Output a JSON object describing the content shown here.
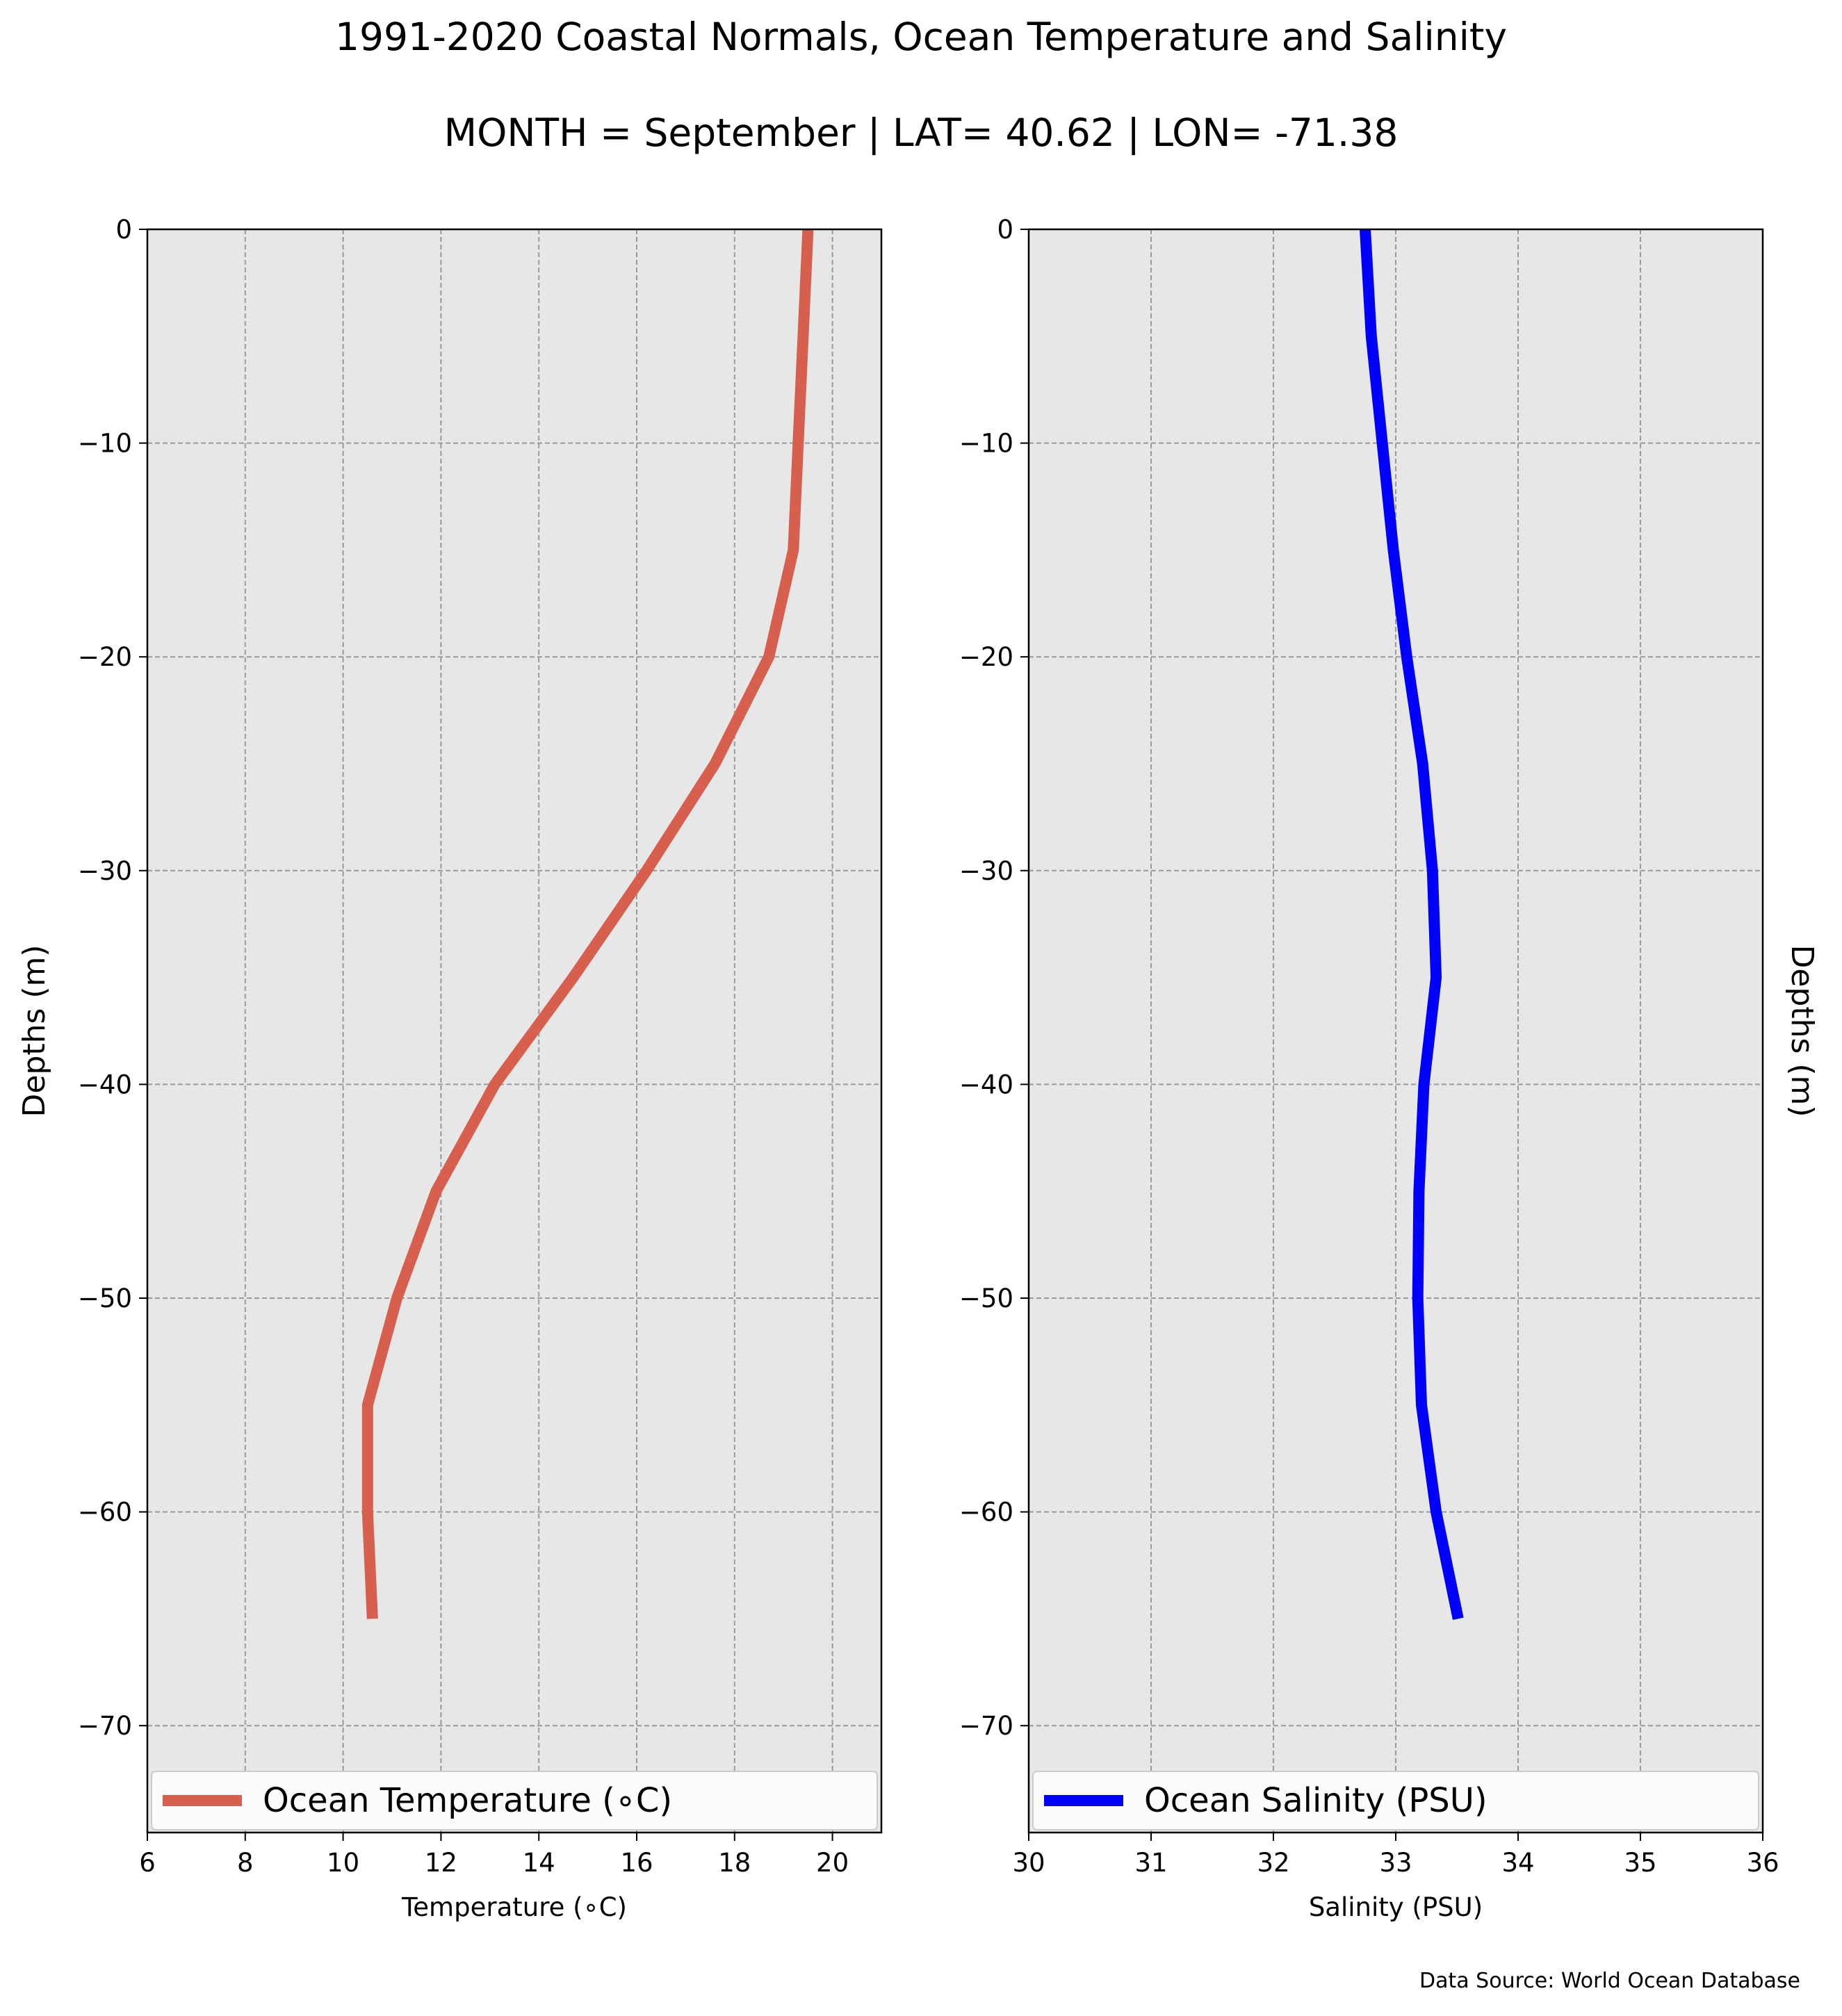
{
  "title": "1991-2020 Coastal Normals, Ocean Temperature and Salinity",
  "subtitle": "MONTH = September | LAT= 40.62 | LON= -71.38",
  "source": "Data Source: World Ocean Database",
  "chart_data": [
    {
      "type": "line",
      "xlabel": "Temperature (∘C)",
      "ylabel": "Depths (m)",
      "xlim": [
        6,
        21
      ],
      "ylim": [
        -75,
        0
      ],
      "xticks": [
        6,
        8,
        10,
        12,
        14,
        16,
        18,
        20
      ],
      "xtick_labels": [
        "6",
        "8",
        "10",
        "12",
        "14",
        "16",
        "18",
        "20"
      ],
      "yticks": [
        0,
        -10,
        -20,
        -30,
        -40,
        -50,
        -60,
        -70
      ],
      "ytick_labels": [
        "0",
        "−10",
        "−20",
        "−30",
        "−40",
        "−50",
        "−60",
        "−70"
      ],
      "grid": true,
      "legend": "bottom",
      "series": [
        {
          "name": "Ocean Temperature (∘C)",
          "color": "#d65f4e",
          "x": [
            19.5,
            19.4,
            19.3,
            19.2,
            18.7,
            17.6,
            16.2,
            14.7,
            13.1,
            11.9,
            11.1,
            10.5,
            10.5,
            10.6
          ],
          "y": [
            0,
            -5,
            -10,
            -15,
            -20,
            -25,
            -30,
            -35,
            -40,
            -45,
            -50,
            -55,
            -60,
            -65
          ]
        }
      ]
    },
    {
      "type": "line",
      "xlabel": "Salinity (PSU)",
      "ylabel": "Depths (m)",
      "xlim": [
        30,
        36
      ],
      "ylim": [
        -75,
        0
      ],
      "xticks": [
        30,
        31,
        32,
        33,
        34,
        35,
        36
      ],
      "xtick_labels": [
        "30",
        "31",
        "32",
        "33",
        "34",
        "35",
        "36"
      ],
      "yticks": [
        0,
        -10,
        -20,
        -30,
        -40,
        -50,
        -60,
        -70
      ],
      "ytick_labels": [
        "0",
        "−10",
        "−20",
        "−30",
        "−40",
        "−50",
        "−60",
        "−70"
      ],
      "grid": true,
      "legend": "bottom",
      "series": [
        {
          "name": "Ocean Salinity (PSU)",
          "color": "#0000ff",
          "x": [
            32.75,
            32.8,
            32.89,
            32.98,
            33.09,
            33.22,
            33.3,
            33.33,
            33.23,
            33.19,
            33.18,
            33.21,
            33.33,
            33.51
          ],
          "y": [
            0,
            -5,
            -10,
            -15,
            -20,
            -25,
            -30,
            -35,
            -40,
            -45,
            -50,
            -55,
            -60,
            -65
          ]
        }
      ]
    }
  ]
}
